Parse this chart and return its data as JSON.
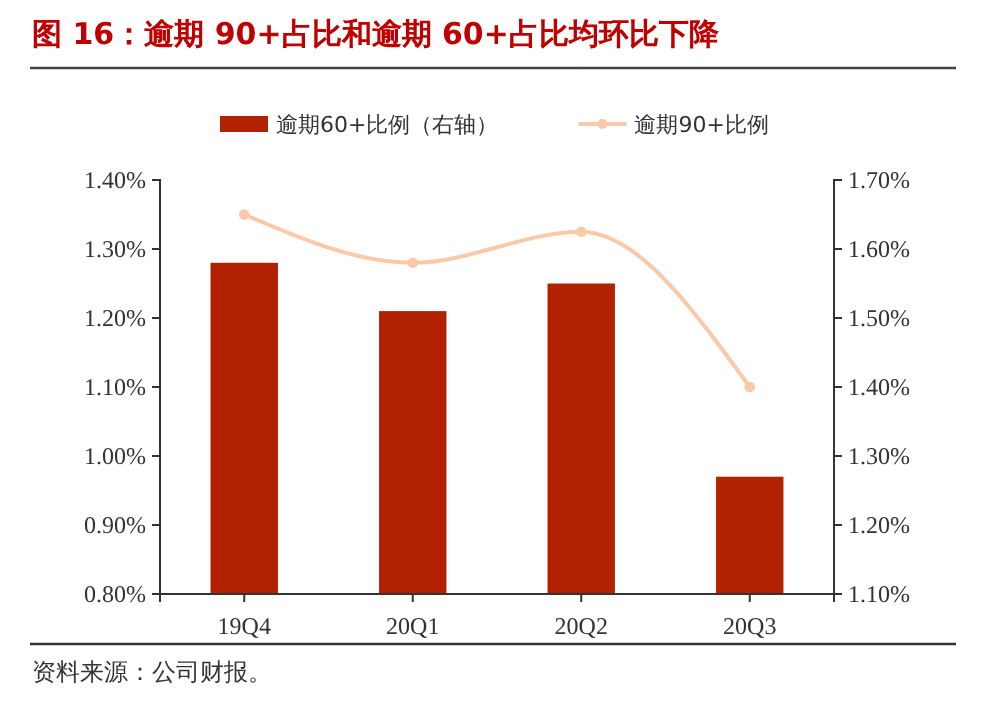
{
  "chart_data": {
    "type": "bar",
    "title": "图 16：逾期 90+占比和逾期 60+占比均环比下降",
    "categories": [
      "19Q4",
      "20Q1",
      "20Q2",
      "20Q3"
    ],
    "series": [
      {
        "name": "逾期60+比例（右轴）",
        "axis": "y2",
        "color": "#b22200",
        "values": [
          1.58,
          1.51,
          1.55,
          1.27
        ]
      },
      {
        "name": "逾期90+比例",
        "type": "line",
        "color": "#f9c9a8",
        "marker": "circle",
        "values": [
          1.35,
          1.28,
          1.325,
          1.1
        ]
      }
    ],
    "ylim": [
      0.8,
      1.4
    ],
    "yticks": [
      {
        "value": 0.8,
        "label": "0.80%"
      },
      {
        "value": 0.9,
        "label": "0.90%"
      },
      {
        "value": 1.0,
        "label": "1.00%"
      },
      {
        "value": 1.1,
        "label": "1.10%"
      },
      {
        "value": 1.2,
        "label": "1.20%"
      },
      {
        "value": 1.3,
        "label": "1.30%"
      },
      {
        "value": 1.4,
        "label": "1.40%"
      }
    ],
    "y2lim": [
      1.1,
      1.7
    ],
    "y2ticks": [
      {
        "value": 1.1,
        "label": "1.10%"
      },
      {
        "value": 1.2,
        "label": "1.20%"
      },
      {
        "value": 1.3,
        "label": "1.30%"
      },
      {
        "value": 1.4,
        "label": "1.40%"
      },
      {
        "value": 1.5,
        "label": "1.50%"
      },
      {
        "value": 1.6,
        "label": "1.60%"
      },
      {
        "value": 1.7,
        "label": "1.70%"
      }
    ],
    "legend": "top",
    "grid": false,
    "annotations": [
      "资料来源：公司财报。"
    ]
  }
}
